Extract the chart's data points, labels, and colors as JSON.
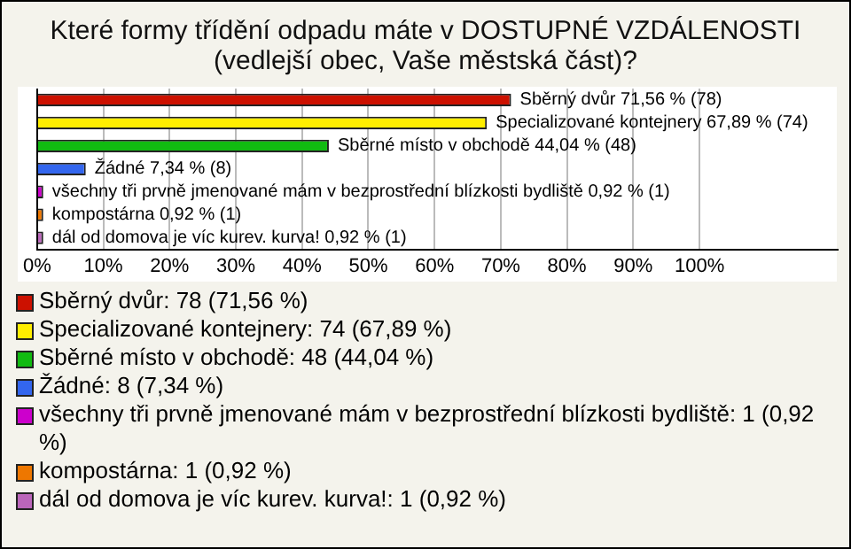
{
  "chart_data": {
    "type": "bar",
    "orientation": "horizontal",
    "title": "Které formy třídění odpadu máte v DOSTUPNÉ VZDÁLENOSTI (vedlejší obec, Vaše městská část)?",
    "categories": [
      null,
      null,
      null,
      null,
      null,
      null,
      null
    ],
    "values": [
      71.56,
      67.89,
      44.04,
      7.34,
      0.92,
      0.92,
      0.92
    ],
    "colors": [
      "#cc1100",
      "#ffee00",
      "#11bb11",
      "#3366ee",
      "#cc00cc",
      "#ee7700",
      "#bb66bb"
    ],
    "value_labels": [
      "Sběrný dvůr 71,56 % (78)",
      "Specializované kontejnery 67,89 % (74)",
      "Sběrné místo v obchodě 44,04 % (48)",
      "Žádné 7,34 % (8)",
      "všechny tři prvně jmenované mám v bezprostřední blízkosti bydliště 0,92 % (1)",
      "kompostárna 0,92 % (1)",
      "dál od domova je víc kurev. kurva! 0,92 % (1)"
    ],
    "annotations": [
      "Sběrný dvůr: 78 (71,56 %)",
      "Specializované kontejnery: 74 (67,89 %)",
      "Sběrné místo v obchodě: 48 (44,04 %)",
      "Žádné: 8 (7,34 %)",
      "všechny tři prvně jmenované mám v bezprostřední blízkosti bydliště: 1 (0,92 %)",
      "kompostárna: 1 (0,92 %)",
      "dál od domova je víc kurev. kurva!: 1 (0,92 %)"
    ],
    "xlim": [
      0,
      121
    ],
    "xticks": [
      {
        "value": 0,
        "label": "0%"
      },
      {
        "value": 10,
        "label": "10%"
      },
      {
        "value": 20,
        "label": "20%"
      },
      {
        "value": 30,
        "label": "30%"
      },
      {
        "value": 40,
        "label": "40%"
      },
      {
        "value": 50,
        "label": "50%"
      },
      {
        "value": 60,
        "label": "60%"
      },
      {
        "value": 70,
        "label": "70%"
      },
      {
        "value": 80,
        "label": "80%"
      },
      {
        "value": 90,
        "label": "90%"
      },
      {
        "value": 100,
        "label": "100%"
      }
    ],
    "grid": "x",
    "tick_labels": "x"
  }
}
